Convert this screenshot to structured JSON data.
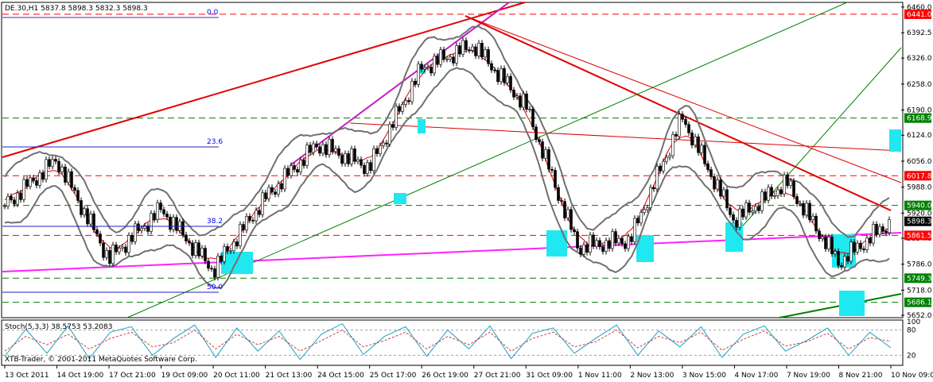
{
  "window": {
    "symbol_header": "DE.30,H1  5837.8 5898.3 5832.3 5898.3",
    "copyright": "XTB-Trader, © 2001-2011 MetaQuotes Software Corp."
  },
  "chart_data": [
    {
      "type": "candlestick",
      "symbol": "DE.30",
      "timeframe": "H1",
      "ohlc_header": {
        "open": 5837.8,
        "high": 5898.3,
        "low": 5832.3,
        "close": 5898.3
      },
      "ylim": [
        5650,
        6470
      ],
      "y_ticks": [
        6460.0,
        6392.5,
        6326.0,
        6258.0,
        6190.0,
        6124.0,
        6056.0,
        5988.0,
        5920.0,
        5854.0,
        5786.0,
        5718.0,
        5652.0
      ],
      "x_ticks": [
        "13 Oct 2011",
        "14 Oct 19:00",
        "17 Oct 21:00",
        "19 Oct 09:00",
        "20 Oct 11:00",
        "21 Oct 13:00",
        "24 Oct 15:00",
        "25 Oct 17:00",
        "26 Oct 19:00",
        "27 Oct 21:00",
        "31 Oct 09:00",
        "1 Nov 11:00",
        "2 Nov 13:00",
        "3 Nov 15:00",
        "4 Nov 17:00",
        "7 Nov 19:00",
        "8 Nov 21:00",
        "10 Nov 09:00"
      ],
      "price_labels": [
        {
          "value": "6441.0",
          "color": "#ff0000"
        },
        {
          "value": "6168.9",
          "color": "#008000"
        },
        {
          "value": "6017.8",
          "color": "#ff0000"
        },
        {
          "value": "5940.0",
          "color": "#008000"
        },
        {
          "value": "5898.3",
          "color": "#000000"
        },
        {
          "value": "5861.5",
          "color": "#ff0000"
        },
        {
          "value": "5749.3",
          "color": "#008000"
        },
        {
          "value": "5686.1",
          "color": "#008000"
        }
      ],
      "fibonacci_labels": [
        "0.0",
        "23.6",
        "38.2",
        "50.0"
      ],
      "close_path_approx": [
        [
          "13 Oct 2011",
          5940
        ],
        [
          "14 Oct 19:00",
          6060
        ],
        [
          "17 Oct 21:00",
          5800
        ],
        [
          "19 Oct 09:00",
          5930
        ],
        [
          "20 Oct 11:00",
          5770
        ],
        [
          "21 Oct 13:00",
          5960
        ],
        [
          "24 Oct 15:00",
          6100
        ],
        [
          "25 Oct 17:00",
          6040
        ],
        [
          "26 Oct 19:00",
          6300
        ],
        [
          "27 Oct 21:00",
          6360
        ],
        [
          "31 Oct 09:00",
          6200
        ],
        [
          "1 Nov 11:00",
          5830
        ],
        [
          "2 Nov 13:00",
          5850
        ],
        [
          "3 Nov 15:00",
          6170
        ],
        [
          "4 Nov 17:00",
          5900
        ],
        [
          "7 Nov 19:00",
          6000
        ],
        [
          "8 Nov 21:00",
          5790
        ],
        [
          "10 Nov 09:00",
          5898
        ]
      ]
    },
    {
      "type": "line",
      "title": "Stoch(5,3,3) 38.5753 53.2083",
      "ylim": [
        0,
        100
      ],
      "y_ticks": [
        "100",
        "80",
        "20"
      ],
      "levels": [
        20,
        80
      ],
      "series": [
        {
          "name": "%K",
          "color": "#20a0c0",
          "values": [
            18,
            82,
            25,
            90,
            12,
            75,
            88,
            20,
            60,
            92,
            15,
            85,
            30,
            78,
            10,
            70,
            95,
            22,
            65,
            88,
            18,
            80,
            35,
            90,
            12,
            72,
            85,
            25,
            60,
            92,
            20,
            78,
            40,
            88,
            15,
            70,
            90,
            30,
            55,
            85,
            20,
            75,
            38
          ]
        },
        {
          "name": "%D",
          "color": "#d04040",
          "values": [
            30,
            65,
            45,
            70,
            35,
            60,
            75,
            40,
            50,
            80,
            35,
            70,
            45,
            65,
            30,
            55,
            80,
            40,
            55,
            75,
            35,
            65,
            45,
            75,
            30,
            60,
            75,
            40,
            52,
            80,
            38,
            65,
            50,
            75,
            32,
            58,
            78,
            42,
            52,
            72,
            35,
            62,
            53
          ]
        }
      ]
    }
  ]
}
